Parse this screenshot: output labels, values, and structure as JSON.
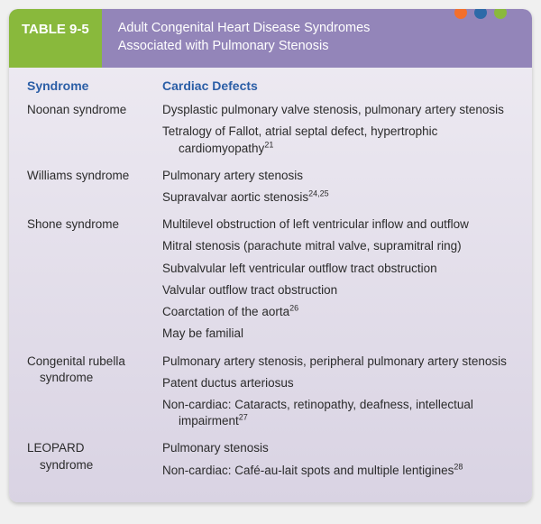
{
  "dots": {
    "colors": [
      "#f36f2b",
      "#2d6aa8",
      "#8ab93c"
    ]
  },
  "header": {
    "table_num": "TABLE 9-5",
    "title_line1": "Adult Congenital Heart Disease Syndromes",
    "title_line2": "Associated with Pulmonary Stenosis",
    "num_bg": "#89b93c",
    "title_bg": "#9385b9"
  },
  "columns": {
    "syndrome": "Syndrome",
    "defects": "Cardiac Defects",
    "header_color": "#2b5ea6"
  },
  "rows": [
    {
      "syndrome": "Noonan syndrome",
      "syndrome_cont": "",
      "defects": [
        {
          "text": "Dysplastic pulmonary valve stenosis, pulmonary artery stenosis",
          "sup": ""
        },
        {
          "text": "Tetralogy of Fallot, atrial septal defect, hypertrophic cardiomyopathy",
          "sup": "21"
        }
      ]
    },
    {
      "syndrome": "Williams syndrome",
      "syndrome_cont": "",
      "defects": [
        {
          "text": "Pulmonary artery stenosis",
          "sup": ""
        },
        {
          "text": "Supravalvar aortic stenosis",
          "sup": "24,25"
        }
      ]
    },
    {
      "syndrome": "Shone syndrome",
      "syndrome_cont": "",
      "defects": [
        {
          "text": "Multilevel obstruction of left ventricular inflow and outflow",
          "sup": ""
        },
        {
          "text": "Mitral stenosis (parachute mitral valve, supramitral ring)",
          "sup": ""
        },
        {
          "text": "Subvalvular left ventricular outflow tract obstruction",
          "sup": ""
        },
        {
          "text": "Valvular outflow tract obstruction",
          "sup": ""
        },
        {
          "text": "Coarctation of the aorta",
          "sup": "26"
        },
        {
          "text": "May be familial",
          "sup": ""
        }
      ]
    },
    {
      "syndrome": "Congenital rubella",
      "syndrome_cont": "syndrome",
      "defects": [
        {
          "text": "Pulmonary artery stenosis, peripheral pulmonary artery stenosis",
          "sup": ""
        },
        {
          "text": "Patent ductus arteriosus",
          "sup": ""
        },
        {
          "text": "Non-cardiac: Cataracts, retinopathy, deafness, intellectual impairment",
          "sup": "27"
        }
      ]
    },
    {
      "syndrome": "LEOPARD",
      "syndrome_cont": "syndrome",
      "defects": [
        {
          "text": "Pulmonary stenosis",
          "sup": ""
        },
        {
          "text": "Non-cardiac: Café-au-lait spots and multiple lentigines",
          "sup": "28"
        }
      ]
    }
  ],
  "body_gradient": {
    "from": "#efecf3",
    "to": "#d9d3e3"
  },
  "text_color": "#2b2b2b",
  "font_family": "Arial, Helvetica, sans-serif"
}
